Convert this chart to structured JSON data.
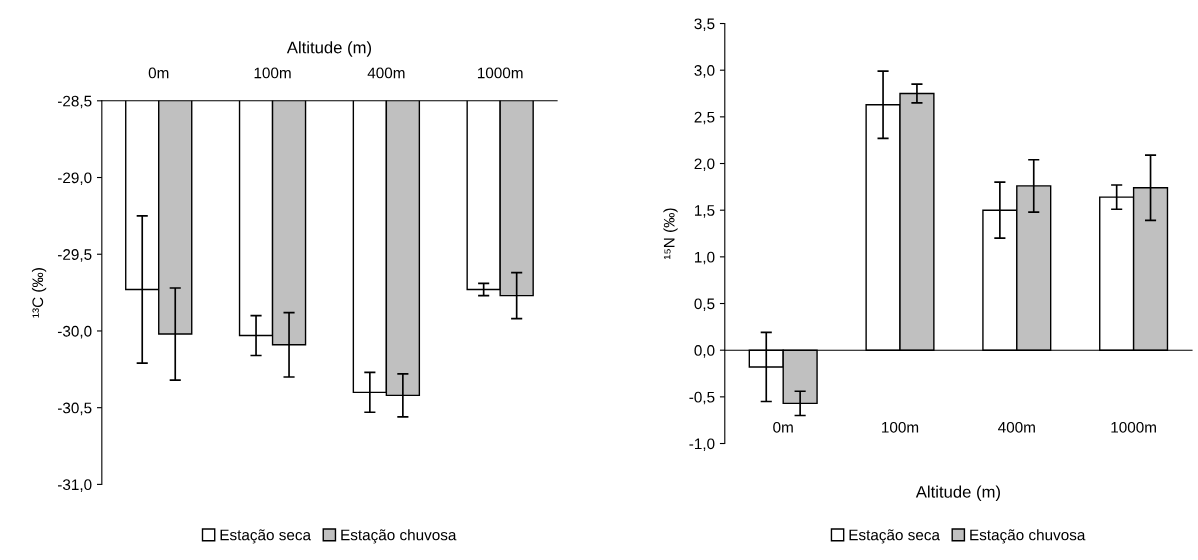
{
  "chart_data": [
    {
      "type": "bar",
      "xlabel": "Altitude (m)",
      "ylabel": "¹³C (‰)",
      "categories": [
        "0m",
        "100m",
        "400m",
        "1000m"
      ],
      "ylim": [
        -31.0,
        -28.5
      ],
      "yticks": [
        {
          "value": -31.0,
          "label": "-31,0"
        },
        {
          "value": -30.5,
          "label": "-30,5"
        },
        {
          "value": -30.0,
          "label": "-30,0"
        },
        {
          "value": -29.5,
          "label": "-29,5"
        },
        {
          "value": -29.0,
          "label": "-29,0"
        },
        {
          "value": -28.5,
          "label": "-28,5"
        }
      ],
      "series": [
        {
          "name": "Estação seca",
          "color": "#ffffff",
          "values": [
            -29.73,
            -30.03,
            -30.4,
            -29.73
          ],
          "errors": [
            0.48,
            0.13,
            0.13,
            0.04
          ]
        },
        {
          "name": "Estação chuvosa",
          "color": "#c0c0c0",
          "values": [
            -30.02,
            -30.09,
            -30.42,
            -29.77
          ],
          "errors": [
            0.3,
            0.21,
            0.14,
            0.15
          ]
        }
      ],
      "legend": "bottom",
      "grid": false
    },
    {
      "type": "bar",
      "xlabel": "Altitude (m)",
      "ylabel": "¹⁵N (‰)",
      "categories": [
        "0m",
        "100m",
        "400m",
        "1000m"
      ],
      "ylim": [
        -1.0,
        3.5
      ],
      "yticks": [
        {
          "value": -1.0,
          "label": "-1,0"
        },
        {
          "value": -0.5,
          "label": "-0,5"
        },
        {
          "value": 0.0,
          "label": "0,0"
        },
        {
          "value": 0.5,
          "label": "0,5"
        },
        {
          "value": 1.0,
          "label": "1,0"
        },
        {
          "value": 1.5,
          "label": "1,5"
        },
        {
          "value": 2.0,
          "label": "2,0"
        },
        {
          "value": 2.5,
          "label": "2,5"
        },
        {
          "value": 3.0,
          "label": "3,0"
        },
        {
          "value": 3.5,
          "label": "3,5"
        }
      ],
      "series": [
        {
          "name": "Estação seca",
          "color": "#ffffff",
          "values": [
            -0.18,
            2.63,
            1.5,
            1.64
          ],
          "errors": [
            0.37,
            0.36,
            0.3,
            0.13
          ]
        },
        {
          "name": "Estação chuvosa",
          "color": "#c0c0c0",
          "values": [
            -0.57,
            2.75,
            1.76,
            1.74
          ],
          "errors": [
            0.13,
            0.1,
            0.28,
            0.35
          ]
        }
      ],
      "legend": "bottom"
    }
  ]
}
